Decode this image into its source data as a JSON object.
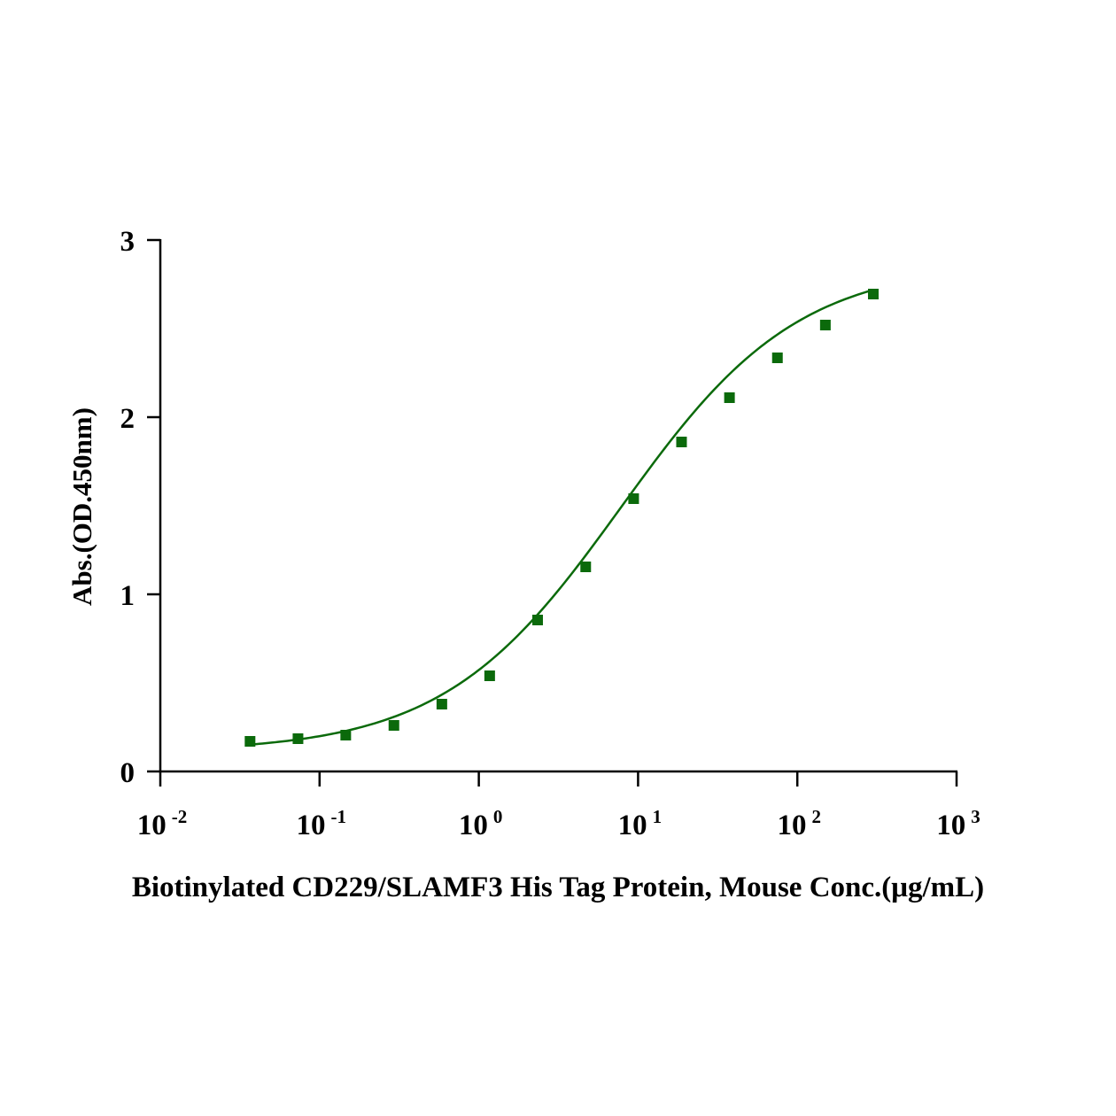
{
  "chart_data": {
    "type": "scatter",
    "x_scale": "log",
    "xlabel": "Biotinylated CD229/SLAMF3 His Tag Protein, Mouse Conc.(μg/mL)",
    "ylabel": "Abs.(OD.450nm)",
    "xlim": [
      0.01,
      1000
    ],
    "ylim": [
      0,
      3
    ],
    "x_ticks": [
      {
        "base": "10",
        "exp": "-2"
      },
      {
        "base": "10",
        "exp": "-1"
      },
      {
        "base": "10",
        "exp": "0"
      },
      {
        "base": "10",
        "exp": "1"
      },
      {
        "base": "10",
        "exp": "2"
      },
      {
        "base": "10",
        "exp": "3"
      }
    ],
    "y_ticks": [
      "0",
      "1",
      "2",
      "3"
    ],
    "grid": false,
    "legend": "none",
    "color": "#0b6a0b",
    "series": [
      {
        "x": [
          0.0366,
          0.0732,
          0.146,
          0.293,
          0.586,
          1.17,
          2.34,
          4.69,
          9.38,
          18.75,
          37.5,
          75,
          150,
          300
        ],
        "y": [
          0.17,
          0.185,
          0.205,
          0.26,
          0.38,
          0.54,
          0.855,
          1.155,
          1.54,
          1.86,
          2.11,
          2.335,
          2.52,
          2.695
        ]
      }
    ],
    "fit": {
      "type": "4PL",
      "bottom": 0.11,
      "top": 2.87,
      "ec50": 7.8,
      "hill": 0.78
    }
  }
}
